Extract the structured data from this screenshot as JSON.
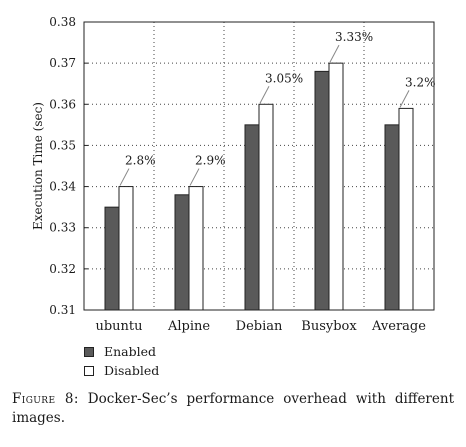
{
  "chart_data": {
    "type": "bar",
    "categories": [
      "ubuntu",
      "Alpine",
      "Debian",
      "Busybox",
      "Average"
    ],
    "series": [
      {
        "name": "Enabled",
        "color": "#5a5a5a",
        "values": [
          0.335,
          0.338,
          0.355,
          0.368,
          0.355
        ]
      },
      {
        "name": "Disabled",
        "color": "#ffffff",
        "values": [
          0.34,
          0.34,
          0.36,
          0.37,
          0.359
        ]
      }
    ],
    "annotations": [
      "2.8%",
      "2.9%",
      "3.05%",
      "3.33%",
      "3.2%"
    ],
    "ylabel": "Execution Time (sec)",
    "ylim": [
      0.31,
      0.38
    ],
    "yticks": [
      "0.31",
      "0.32",
      "0.33",
      "0.34",
      "0.35",
      "0.36",
      "0.37",
      "0.38"
    ],
    "grid": true,
    "legend_position": "bottom-left"
  },
  "caption": {
    "label": "Figure 8:",
    "text": " Docker-Sec’s performance overhead with different images."
  }
}
